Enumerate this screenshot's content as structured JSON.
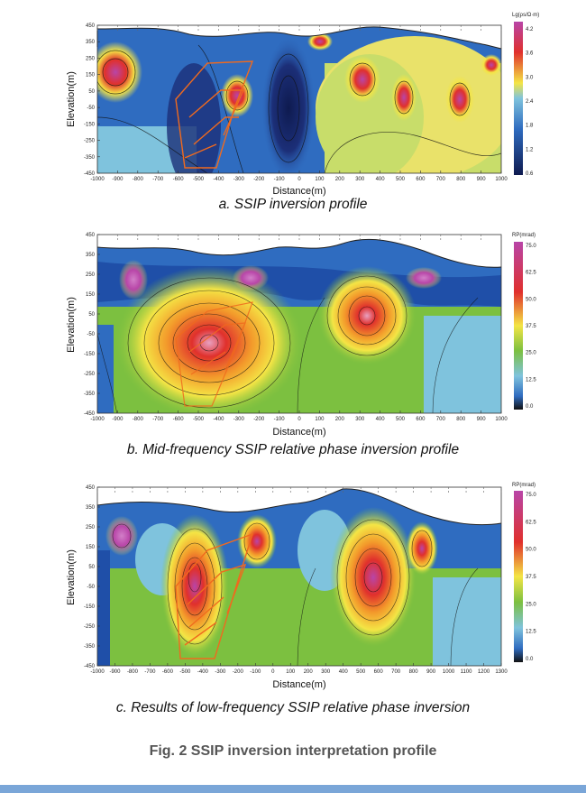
{
  "figure": {
    "title": "Fig. 2 SSIP inversion interpretation profile",
    "panels": [
      {
        "id": "a",
        "caption": "a. SSIP inversion profile",
        "xlabel": "Distance(m)",
        "ylabel": "Elevation(m)",
        "x_ticks": [
          "-1000",
          "-900",
          "-800",
          "-700",
          "-600",
          "-500",
          "-400",
          "-300",
          "-200",
          "-100",
          "0",
          "100",
          "200",
          "300",
          "400",
          "500",
          "600",
          "700",
          "800",
          "900",
          "1000"
        ],
        "y_ticks": [
          "450",
          "350",
          "250",
          "150",
          "50",
          "-50",
          "-150",
          "-250",
          "-350",
          "-450"
        ],
        "colorbar_title": "Lg(ρs/Ω·m)",
        "colorbar_ticks": [
          "4.2",
          "3.6",
          "3.0",
          "2.4",
          "1.8",
          "1.2",
          "0.6"
        ]
      },
      {
        "id": "b",
        "caption": "b. Mid-frequency SSIP relative phase inversion profile",
        "xlabel": "Distance(m)",
        "ylabel": "Elevation(m)",
        "x_ticks": [
          "-1000",
          "-900",
          "-800",
          "-700",
          "-600",
          "-500",
          "-400",
          "-300",
          "-200",
          "-100",
          "0",
          "100",
          "200",
          "300",
          "400",
          "500",
          "600",
          "700",
          "800",
          "900",
          "1000"
        ],
        "y_ticks": [
          "450",
          "350",
          "250",
          "150",
          "50",
          "-50",
          "-150",
          "-250",
          "-350",
          "-450"
        ],
        "colorbar_title": "RP(mrad)",
        "colorbar_ticks": [
          "75.0",
          "62.5",
          "50.0",
          "37.5",
          "25.0",
          "12.5",
          "0.0"
        ]
      },
      {
        "id": "c",
        "caption": "c. Results of low-frequency SSIP relative phase inversion",
        "xlabel": "Distance(m)",
        "ylabel": "Elevation(m)",
        "x_ticks": [
          "-1000",
          "-900",
          "-800",
          "-700",
          "-600",
          "-500",
          "-400",
          "-300",
          "-200",
          "-100",
          "0",
          "100",
          "200",
          "300",
          "400",
          "500",
          "600",
          "700",
          "800",
          "900",
          "1000",
          "1100",
          "1200",
          "1300"
        ],
        "y_ticks": [
          "450",
          "350",
          "250",
          "150",
          "50",
          "-50",
          "-150",
          "-250",
          "-350",
          "-450"
        ],
        "colorbar_title": "RP(mrad)",
        "colorbar_ticks": [
          "75.0",
          "62.5",
          "50.0",
          "37.5",
          "25.0",
          "12.5",
          "0.0"
        ]
      }
    ]
  },
  "colors": {
    "deep_blue": "#1c2f78",
    "blue": "#2f6cc0",
    "light_blue": "#7fc3dd",
    "green": "#7cc040",
    "yellow": "#f4e545",
    "orange": "#f39a2b",
    "red": "#e0302c",
    "magenta": "#b845a8",
    "accent_bar": "#7aa6d8",
    "interp_line": "#f06a1e"
  }
}
